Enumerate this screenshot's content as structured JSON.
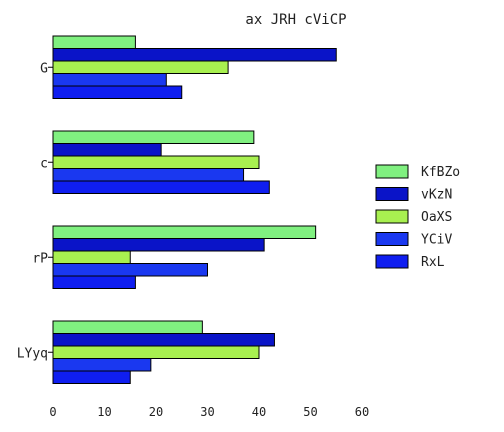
{
  "chart_data": {
    "type": "bar",
    "orientation": "horizontal",
    "title": "ax JRH cViCP",
    "xlabel": "",
    "ylabel": "",
    "categories": [
      "G",
      "c",
      "rP",
      "LYyq"
    ],
    "xlim": [
      0,
      60
    ],
    "xticks": [
      0,
      10,
      20,
      30,
      40,
      50,
      60
    ],
    "grid": false,
    "legend_position": "right",
    "series": [
      {
        "name": "KfBZo",
        "color": "#80f080",
        "values": [
          16,
          39,
          51,
          29
        ]
      },
      {
        "name": "vKzN",
        "color": "#0a14c8",
        "values": [
          55,
          21,
          41,
          43
        ]
      },
      {
        "name": "OaXS",
        "color": "#a8f050",
        "values": [
          34,
          40,
          15,
          40
        ]
      },
      {
        "name": "YCiV",
        "color": "#1a38f0",
        "values": [
          22,
          37,
          30,
          19
        ]
      },
      {
        "name": "RxL",
        "color": "#0f1ef0",
        "values": [
          25,
          42,
          16,
          15
        ]
      }
    ]
  }
}
